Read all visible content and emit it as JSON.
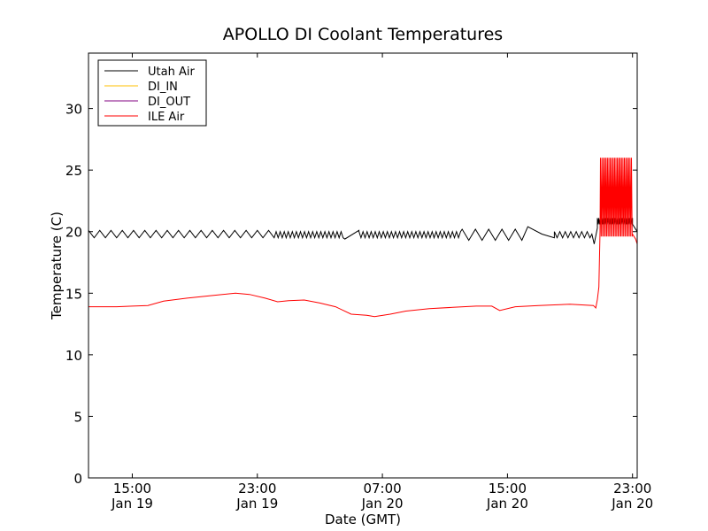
{
  "chart_data": {
    "type": "line",
    "title": "APOLLO DI Coolant Temperatures",
    "xlabel": "Date (GMT)",
    "ylabel": "Temperature (C)",
    "x_unit": "hours since Jan 19 00:00 GMT",
    "xlim": [
      12.2,
      47.3
    ],
    "ylim": [
      0,
      34.5
    ],
    "yticks": [
      0,
      5,
      10,
      15,
      20,
      25,
      30
    ],
    "xticks": [
      {
        "value": 15,
        "time": "15:00",
        "date": "Jan 19"
      },
      {
        "value": 23,
        "time": "23:00",
        "date": "Jan 19"
      },
      {
        "value": 31,
        "time": "07:00",
        "date": "Jan 20"
      },
      {
        "value": 39,
        "time": "15:00",
        "date": "Jan 20"
      },
      {
        "value": 47,
        "time": "23:00",
        "date": "Jan 20"
      }
    ],
    "legend": {
      "position": "top-left",
      "entries": [
        {
          "name": "Utah Air",
          "color": "#000000"
        },
        {
          "name": "DI_IN",
          "color": "#ffbf00"
        },
        {
          "name": "DI_OUT",
          "color": "#800080"
        },
        {
          "name": "ILE Air",
          "color": "#ff0000"
        }
      ]
    },
    "series": [
      {
        "name": "Utah Air",
        "color": "#000000",
        "segments": [
          {
            "x0": 12.2,
            "x1": 24.2,
            "mode": "zigzag",
            "period": 0.72,
            "lo": 19.5,
            "hi": 20.1
          },
          {
            "x0": 24.2,
            "x1": 28.6,
            "mode": "zigzag",
            "period": 0.26,
            "lo": 19.5,
            "hi": 20.0
          },
          {
            "x0": 28.6,
            "x1": 29.5,
            "mode": "line",
            "points": [
              [
                28.6,
                19.4
              ],
              [
                29.5,
                20.1
              ]
            ]
          },
          {
            "x0": 29.5,
            "x1": 36.1,
            "mode": "zigzag",
            "period": 0.26,
            "lo": 19.5,
            "hi": 20.0
          },
          {
            "x0": 36.1,
            "x1": 40.3,
            "mode": "zigzag",
            "period": 0.85,
            "lo": 19.3,
            "hi": 20.2
          },
          {
            "x0": 40.3,
            "x1": 42.0,
            "mode": "line",
            "points": [
              [
                40.3,
                20.4
              ],
              [
                41.2,
                19.8
              ],
              [
                42.0,
                19.5
              ]
            ]
          },
          {
            "x0": 42.0,
            "x1": 44.4,
            "mode": "zigzag",
            "period": 0.35,
            "lo": 19.5,
            "hi": 20.0
          },
          {
            "x0": 44.4,
            "x1": 44.75,
            "mode": "line",
            "points": [
              [
                44.4,
                19.8
              ],
              [
                44.55,
                19.0
              ],
              [
                44.75,
                20.3
              ]
            ]
          },
          {
            "x0": 44.75,
            "x1": 47.0,
            "mode": "zigzag",
            "period": 0.09,
            "lo": 20.6,
            "hi": 21.1
          },
          {
            "x0": 47.0,
            "x1": 47.3,
            "mode": "line",
            "points": [
              [
                47.0,
                20.6
              ],
              [
                47.3,
                20.0
              ]
            ]
          }
        ]
      },
      {
        "name": "ILE Air",
        "color": "#ff0000",
        "points": [
          [
            12.2,
            13.9
          ],
          [
            13.5,
            13.9
          ],
          [
            14.0,
            13.9
          ],
          [
            15.0,
            13.95
          ],
          [
            16.0,
            14.0
          ],
          [
            17.0,
            14.35
          ],
          [
            18.5,
            14.6
          ],
          [
            20.0,
            14.8
          ],
          [
            21.6,
            15.0
          ],
          [
            22.5,
            14.9
          ],
          [
            23.5,
            14.6
          ],
          [
            24.3,
            14.3
          ],
          [
            25.0,
            14.4
          ],
          [
            26.0,
            14.45
          ],
          [
            27.0,
            14.2
          ],
          [
            28.0,
            13.9
          ],
          [
            29.0,
            13.3
          ],
          [
            30.0,
            13.2
          ],
          [
            30.5,
            13.1
          ],
          [
            31.5,
            13.3
          ],
          [
            32.5,
            13.55
          ],
          [
            34.0,
            13.75
          ],
          [
            35.5,
            13.85
          ],
          [
            37.0,
            13.95
          ],
          [
            38.0,
            13.95
          ],
          [
            38.5,
            13.6
          ],
          [
            39.5,
            13.9
          ],
          [
            41.0,
            14.0
          ],
          [
            42.0,
            14.05
          ],
          [
            43.0,
            14.1
          ],
          [
            44.5,
            14.0
          ],
          [
            44.65,
            13.8
          ],
          [
            44.75,
            14.5
          ],
          [
            44.85,
            15.5
          ],
          [
            44.92,
            20.0
          ]
        ],
        "oscillation": {
          "x0": 44.95,
          "x1": 47.0,
          "period": 0.09,
          "lo": 19.6,
          "hi": 26.0
        },
        "tail": [
          [
            47.0,
            19.8
          ],
          [
            47.2,
            19.4
          ],
          [
            47.3,
            19.0
          ]
        ]
      }
    ]
  }
}
